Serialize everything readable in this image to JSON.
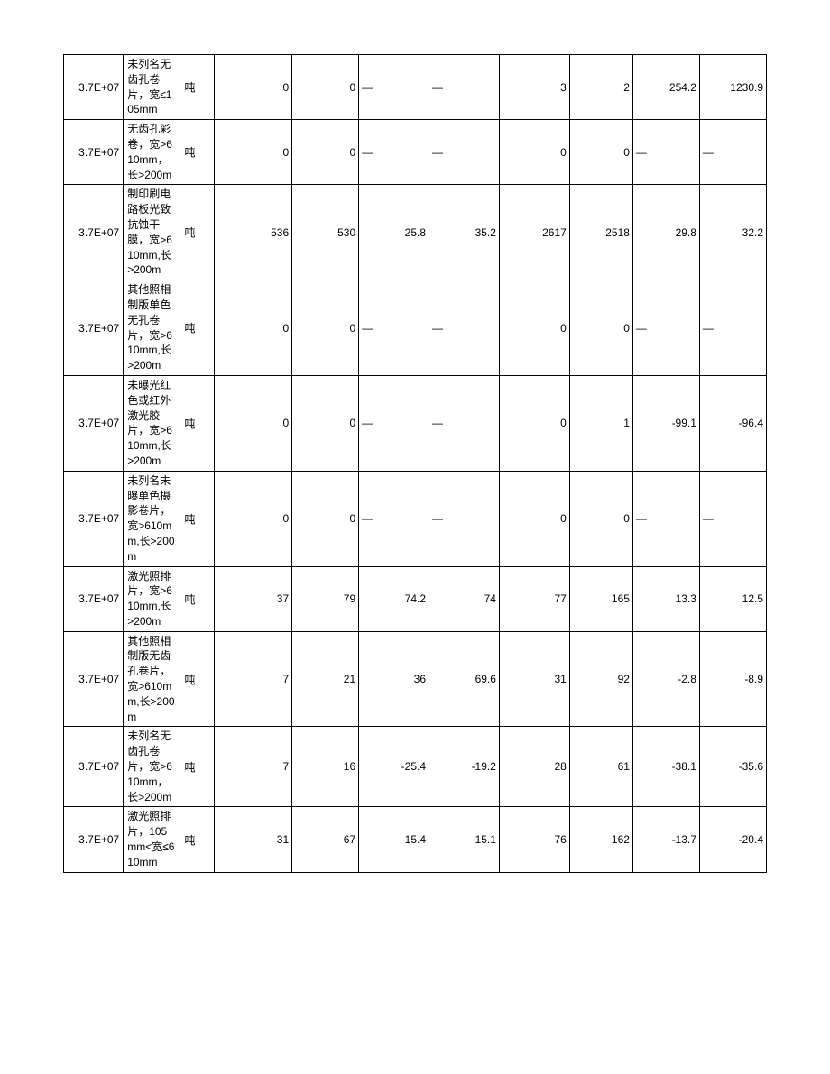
{
  "table": {
    "columns": [
      {
        "key": "code",
        "class": "col-code",
        "align": "right"
      },
      {
        "key": "desc",
        "class": "col-desc",
        "align": "left"
      },
      {
        "key": "unit",
        "class": "col-unit",
        "align": "left"
      },
      {
        "key": "n1",
        "class": "col-num col-n1",
        "align": "right"
      },
      {
        "key": "n2",
        "class": "col-num col-n2",
        "align": "right"
      },
      {
        "key": "n3",
        "class": "col-num col-n3",
        "align": "right"
      },
      {
        "key": "n4",
        "class": "col-num col-n4",
        "align": "right"
      },
      {
        "key": "n5",
        "class": "col-num col-n5",
        "align": "right"
      },
      {
        "key": "n6",
        "class": "col-num col-n6",
        "align": "right"
      },
      {
        "key": "n7",
        "class": "col-num col-n7",
        "align": "right"
      },
      {
        "key": "n8",
        "class": "col-num col-n8",
        "align": "right"
      }
    ],
    "rows": [
      {
        "code": "3.7E+07",
        "desc": "未列名无齿孔卷片，宽≤105mm",
        "unit": "吨",
        "n1": "0",
        "n2": "0",
        "n3": "—",
        "n4": "—",
        "n5": "3",
        "n6": "2",
        "n7": "254.2",
        "n8": "1230.9"
      },
      {
        "code": "3.7E+07",
        "desc": "无齿孔彩卷，宽>610mm，长>200m",
        "unit": "吨",
        "n1": "0",
        "n2": "0",
        "n3": "—",
        "n4": "—",
        "n5": "0",
        "n6": "0",
        "n7": "—",
        "n8": "—"
      },
      {
        "code": "3.7E+07",
        "desc": "制印刷电路板光致抗蚀干膜，宽>610mm,长>200m",
        "unit": "吨",
        "n1": "536",
        "n2": "530",
        "n3": "25.8",
        "n4": "35.2",
        "n5": "2617",
        "n6": "2518",
        "n7": "29.8",
        "n8": "32.2"
      },
      {
        "code": "3.7E+07",
        "desc": "其他照相制版单色无孔卷片，宽>610mm,长>200m",
        "unit": "吨",
        "n1": "0",
        "n2": "0",
        "n3": "—",
        "n4": "—",
        "n5": "0",
        "n6": "0",
        "n7": "—",
        "n8": "—"
      },
      {
        "code": "3.7E+07",
        "desc": "未曝光红色或红外激光胶片，宽>610mm,长>200m",
        "unit": "吨",
        "n1": "0",
        "n2": "0",
        "n3": "—",
        "n4": "—",
        "n5": "0",
        "n6": "1",
        "n7": "-99.1",
        "n8": "-96.4"
      },
      {
        "code": "3.7E+07",
        "desc": "未列名未曝单色摄影卷片，宽>610mm,长>200m",
        "unit": "吨",
        "n1": "0",
        "n2": "0",
        "n3": "—",
        "n4": "—",
        "n5": "0",
        "n6": "0",
        "n7": "—",
        "n8": "—"
      },
      {
        "code": "3.7E+07",
        "desc": "激光照排片，宽>610mm,长>200m",
        "unit": "吨",
        "n1": "37",
        "n2": "79",
        "n3": "74.2",
        "n4": "74",
        "n5": "77",
        "n6": "165",
        "n7": "13.3",
        "n8": "12.5"
      },
      {
        "code": "3.7E+07",
        "desc": "其他照相制版无齿孔卷片，宽>610mm,长>200m",
        "unit": "吨",
        "n1": "7",
        "n2": "21",
        "n3": "36",
        "n4": "69.6",
        "n5": "31",
        "n6": "92",
        "n7": "-2.8",
        "n8": "-8.9"
      },
      {
        "code": "3.7E+07",
        "desc": "未列名无齿孔卷片，宽>610mm，长>200m",
        "unit": "吨",
        "n1": "7",
        "n2": "16",
        "n3": "-25.4",
        "n4": "-19.2",
        "n5": "28",
        "n6": "61",
        "n7": "-38.1",
        "n8": "-35.6"
      },
      {
        "code": "3.7E+07",
        "desc": "激光照排片，105mm<宽≤610mm",
        "unit": "吨",
        "n1": "31",
        "n2": "67",
        "n3": "15.4",
        "n4": "15.1",
        "n5": "76",
        "n6": "162",
        "n7": "-13.7",
        "n8": "-20.4"
      }
    ],
    "border_color": "#000000",
    "background_color": "#ffffff",
    "font_size": 12
  }
}
